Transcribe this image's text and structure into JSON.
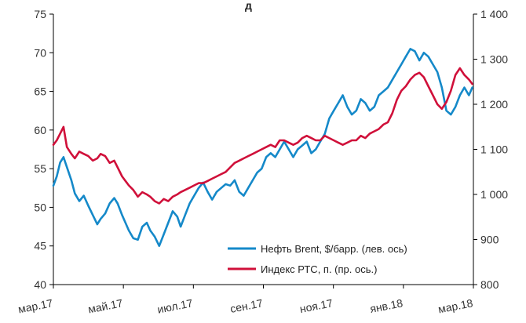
{
  "cut_title": "д",
  "colors": {
    "brent": "#1589c9",
    "rts": "#d0103a"
  },
  "chart_data": {
    "type": "line",
    "title": "",
    "xlabel": "",
    "ylabel": "",
    "x_ticks": [
      "мар.17",
      "май.17",
      "июл.17",
      "сен.17",
      "ноя.17",
      "янв.18",
      "мар.18"
    ],
    "x_range": [
      "2017-03-01",
      "2018-03-09"
    ],
    "y_left": {
      "ylim": [
        40,
        75
      ],
      "ticks": [
        "40",
        "45",
        "50",
        "55",
        "60",
        "65",
        "70",
        "75"
      ]
    },
    "y_right": {
      "ylim": [
        800,
        1400
      ],
      "ticks": [
        "800",
        "900",
        "1 000",
        "1 100",
        "1 200",
        "1 300",
        "1 400"
      ]
    },
    "legend": {
      "placement": "bottom-right"
    },
    "grid": false,
    "series": [
      {
        "name": "Нефть Brent, $/барр. (лев. ось)",
        "axis": "left",
        "color": "#1589c9",
        "x": [
          "2017-03-01",
          "2017-03-04",
          "2017-03-07",
          "2017-03-10",
          "2017-03-13",
          "2017-03-17",
          "2017-03-20",
          "2017-03-24",
          "2017-03-28",
          "2017-04-01",
          "2017-04-05",
          "2017-04-09",
          "2017-04-12",
          "2017-04-16",
          "2017-04-20",
          "2017-04-24",
          "2017-04-27",
          "2017-05-01",
          "2017-05-04",
          "2017-05-07",
          "2017-05-11",
          "2017-05-15",
          "2017-05-19",
          "2017-05-23",
          "2017-05-26",
          "2017-05-30",
          "2017-06-03",
          "2017-06-07",
          "2017-06-11",
          "2017-06-15",
          "2017-06-19",
          "2017-06-22",
          "2017-06-26",
          "2017-06-30",
          "2017-07-04",
          "2017-07-08",
          "2017-07-12",
          "2017-07-16",
          "2017-07-20",
          "2017-07-24",
          "2017-07-28",
          "2017-08-01",
          "2017-08-05",
          "2017-08-09",
          "2017-08-13",
          "2017-08-17",
          "2017-08-21",
          "2017-08-25",
          "2017-08-29",
          "2017-09-02",
          "2017-09-06",
          "2017-09-10",
          "2017-09-14",
          "2017-09-18",
          "2017-09-22",
          "2017-09-26",
          "2017-09-30",
          "2017-10-04",
          "2017-10-08",
          "2017-10-12",
          "2017-10-16",
          "2017-10-20",
          "2017-10-24",
          "2017-10-28",
          "2017-11-01",
          "2017-11-05",
          "2017-11-09",
          "2017-11-13",
          "2017-11-17",
          "2017-11-21",
          "2017-11-25",
          "2017-11-29",
          "2017-12-03",
          "2017-12-07",
          "2017-12-11",
          "2017-12-15",
          "2017-12-19",
          "2017-12-23",
          "2017-12-27",
          "2017-12-31",
          "2018-01-04",
          "2018-01-08",
          "2018-01-12",
          "2018-01-16",
          "2018-01-20",
          "2018-01-24",
          "2018-01-28",
          "2018-02-01",
          "2018-02-05",
          "2018-02-09",
          "2018-02-13",
          "2018-02-17",
          "2018-02-21",
          "2018-02-25",
          "2018-03-01",
          "2018-03-05",
          "2018-03-08"
        ],
        "values": [
          52.8,
          54.0,
          55.8,
          56.5,
          55.2,
          53.5,
          51.8,
          50.8,
          51.5,
          50.2,
          49.0,
          47.8,
          48.5,
          49.2,
          50.5,
          51.2,
          50.5,
          49.0,
          48.0,
          47.0,
          46.0,
          45.8,
          47.5,
          48.0,
          47.0,
          46.2,
          45.0,
          46.5,
          48.0,
          49.5,
          48.8,
          47.5,
          49.0,
          50.5,
          51.5,
          52.5,
          53.2,
          52.0,
          51.0,
          52.0,
          52.5,
          53.0,
          52.8,
          53.5,
          52.0,
          51.5,
          52.5,
          53.5,
          54.5,
          55.0,
          56.5,
          57.0,
          56.5,
          57.5,
          58.5,
          57.5,
          56.5,
          57.5,
          58.0,
          58.5,
          57.0,
          57.5,
          58.5,
          59.5,
          61.5,
          62.5,
          63.5,
          64.5,
          63.0,
          62.0,
          62.5,
          64.0,
          63.5,
          62.5,
          63.0,
          64.5,
          65.0,
          65.5,
          66.5,
          67.5,
          68.5,
          69.5,
          70.5,
          70.2,
          69.0,
          70.0,
          69.5,
          68.5,
          67.5,
          65.5,
          62.5,
          62.0,
          63.0,
          64.5,
          65.5,
          64.5,
          65.5
        ]
      },
      {
        "name": "Индекс РТС, п. (пр. ось.)",
        "axis": "right",
        "color": "#d0103a",
        "x": [
          "2017-03-01",
          "2017-03-04",
          "2017-03-07",
          "2017-03-10",
          "2017-03-13",
          "2017-03-17",
          "2017-03-20",
          "2017-03-24",
          "2017-03-28",
          "2017-04-01",
          "2017-04-05",
          "2017-04-09",
          "2017-04-12",
          "2017-04-16",
          "2017-04-20",
          "2017-04-24",
          "2017-04-27",
          "2017-05-01",
          "2017-05-04",
          "2017-05-07",
          "2017-05-11",
          "2017-05-15",
          "2017-05-19",
          "2017-05-23",
          "2017-05-26",
          "2017-05-30",
          "2017-06-03",
          "2017-06-07",
          "2017-06-11",
          "2017-06-15",
          "2017-06-19",
          "2017-06-22",
          "2017-06-26",
          "2017-06-30",
          "2017-07-04",
          "2017-07-08",
          "2017-07-12",
          "2017-07-16",
          "2017-07-20",
          "2017-07-24",
          "2017-07-28",
          "2017-08-01",
          "2017-08-05",
          "2017-08-09",
          "2017-08-13",
          "2017-08-17",
          "2017-08-21",
          "2017-08-25",
          "2017-08-29",
          "2017-09-02",
          "2017-09-06",
          "2017-09-10",
          "2017-09-14",
          "2017-09-18",
          "2017-09-22",
          "2017-09-26",
          "2017-09-30",
          "2017-10-04",
          "2017-10-08",
          "2017-10-12",
          "2017-10-16",
          "2017-10-20",
          "2017-10-24",
          "2017-10-28",
          "2017-11-01",
          "2017-11-05",
          "2017-11-09",
          "2017-11-13",
          "2017-11-17",
          "2017-11-21",
          "2017-11-25",
          "2017-11-29",
          "2017-12-03",
          "2017-12-07",
          "2017-12-11",
          "2017-12-15",
          "2017-12-19",
          "2017-12-23",
          "2017-12-27",
          "2017-12-31",
          "2018-01-04",
          "2018-01-08",
          "2018-01-12",
          "2018-01-16",
          "2018-01-20",
          "2018-01-24",
          "2018-01-28",
          "2018-02-01",
          "2018-02-05",
          "2018-02-09",
          "2018-02-13",
          "2018-02-17",
          "2018-02-21",
          "2018-02-25",
          "2018-03-01",
          "2018-03-05",
          "2018-03-08"
        ],
        "values": [
          1110,
          1120,
          1135,
          1150,
          1105,
          1090,
          1080,
          1095,
          1090,
          1085,
          1075,
          1080,
          1090,
          1085,
          1070,
          1075,
          1060,
          1040,
          1030,
          1020,
          1010,
          995,
          1005,
          1000,
          995,
          985,
          980,
          990,
          985,
          995,
          1000,
          1005,
          1010,
          1015,
          1020,
          1025,
          1025,
          1030,
          1035,
          1040,
          1045,
          1050,
          1060,
          1070,
          1075,
          1080,
          1085,
          1090,
          1095,
          1100,
          1105,
          1110,
          1105,
          1120,
          1120,
          1115,
          1110,
          1115,
          1125,
          1130,
          1125,
          1120,
          1120,
          1130,
          1125,
          1120,
          1115,
          1110,
          1115,
          1120,
          1120,
          1130,
          1125,
          1135,
          1140,
          1145,
          1155,
          1160,
          1180,
          1210,
          1230,
          1240,
          1255,
          1265,
          1270,
          1260,
          1240,
          1220,
          1200,
          1190,
          1205,
          1230,
          1265,
          1280,
          1265,
          1255,
          1245
        ]
      }
    ]
  }
}
